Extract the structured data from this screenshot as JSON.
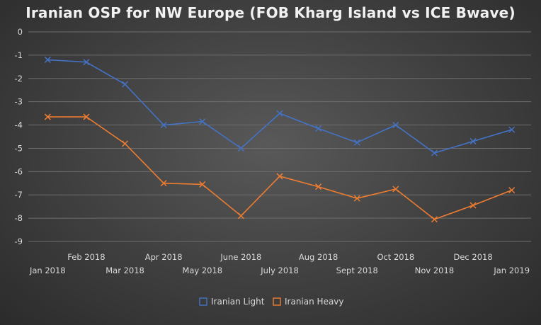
{
  "chart_data": {
    "type": "line",
    "title": "Iranian OSP for NW Europe (FOB Kharg Island vs ICE Bwave)",
    "xlabel": "",
    "ylabel": "",
    "categories": [
      "Jan 2018",
      "Feb 2018",
      "Mar 2018",
      "Apr 2018",
      "May 2018",
      "June 2018",
      "July 2018",
      "Aug 2018",
      "Sept 2018",
      "Oct 2018",
      "Nov 2018",
      "Dec 2018",
      "Jan 2019"
    ],
    "ylim": [
      -9,
      0
    ],
    "yticks": [
      0,
      -1,
      -2,
      -3,
      -4,
      -5,
      -6,
      -7,
      -8,
      -9
    ],
    "grid": true,
    "legend_position": "bottom",
    "series": [
      {
        "name": "Iranian Light",
        "color": "#4472c4",
        "marker": "x",
        "values": [
          -1.2,
          -1.3,
          -2.25,
          -4.0,
          -3.85,
          -5.0,
          -3.5,
          -4.15,
          -4.75,
          -4.0,
          -5.2,
          -4.7,
          -4.2
        ]
      },
      {
        "name": "Iranian Heavy",
        "color": "#ed7d31",
        "marker": "x",
        "values": [
          -3.65,
          -3.65,
          -4.8,
          -6.5,
          -6.55,
          -7.9,
          -6.2,
          -6.65,
          -7.15,
          -6.75,
          -8.05,
          -7.45,
          -6.8
        ]
      }
    ]
  }
}
